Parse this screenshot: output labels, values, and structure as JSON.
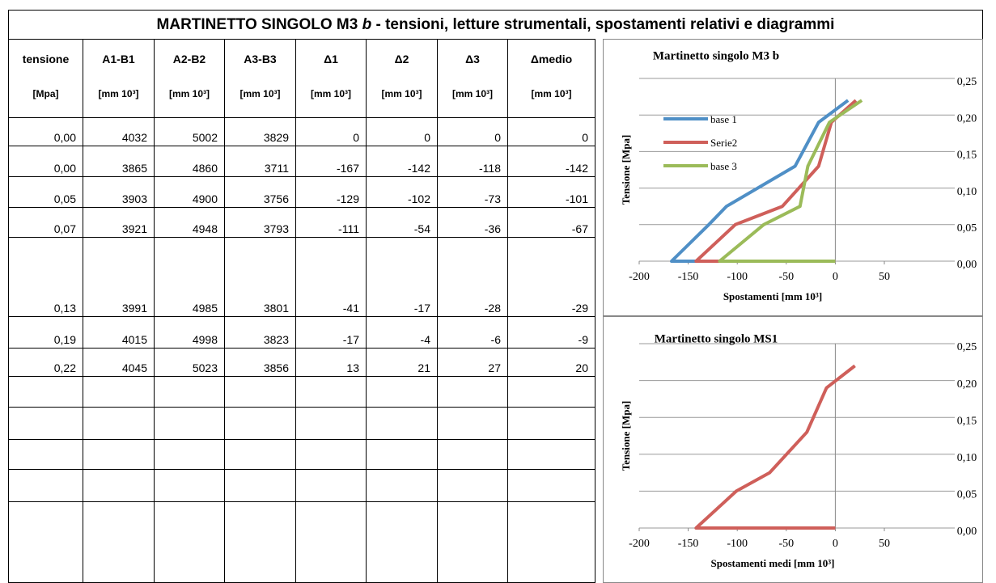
{
  "title_start": "MARTINETTO SINGOLO M3 ",
  "title_italic": "b",
  "title_end": " - tensioni, letture strumentali, spostamenti relativi e diagrammi",
  "table": {
    "headers": [
      "tensione",
      "A1-B1",
      "A2-B2",
      "A3-B3",
      "Δ1",
      "Δ2",
      "Δ3",
      "Δmedio"
    ],
    "units": [
      "[Mpa]",
      "[mm 10³]",
      "[mm 10³]",
      "[mm 10³]",
      "[mm 10³]",
      "[mm 10³]",
      "[mm 10³]",
      "[mm 10³]"
    ],
    "rows": [
      [
        "0,00",
        "4032",
        "5002",
        "3829",
        "0",
        "0",
        "0",
        "0"
      ],
      [
        "0,00",
        "3865",
        "4860",
        "3711",
        "-167",
        "-142",
        "-118",
        "-142"
      ],
      [
        "0,05",
        "3903",
        "4900",
        "3756",
        "-129",
        "-102",
        "-73",
        "-101"
      ],
      [
        "0,07",
        "3921",
        "4948",
        "3793",
        "-111",
        "-54",
        "-36",
        "-67"
      ],
      [
        "0,13",
        "3991",
        "4985",
        "3801",
        "-41",
        "-17",
        "-28",
        "-29"
      ],
      [
        "0,19",
        "4015",
        "4998",
        "3823",
        "-17",
        "-4",
        "-6",
        "-9"
      ],
      [
        "0,22",
        "4045",
        "5023",
        "3856",
        "13",
        "21",
        "27",
        "20"
      ]
    ]
  },
  "chart_data": [
    {
      "type": "line",
      "title": "Martinetto singolo M3 b",
      "xlabel": "Spostamenti [mm  10³]",
      "ylabel": "Tensione [Mpa]",
      "xlim": [
        -200,
        50
      ],
      "xticks": [
        -200,
        -150,
        -100,
        -50,
        0,
        50
      ],
      "ylim": [
        0,
        0.25
      ],
      "yticks": [
        {
          "value": 0,
          "label": "0,00"
        },
        {
          "value": 0.05,
          "label": "0,05"
        },
        {
          "value": 0.1,
          "label": "0,10"
        },
        {
          "value": 0.15,
          "label": "0,15"
        },
        {
          "value": 0.2,
          "label": "0,20"
        },
        {
          "value": 0.25,
          "label": "0,25"
        }
      ],
      "grid": true,
      "legend": "upper left",
      "series": [
        {
          "name": "base 1",
          "color": "#4f8fc6",
          "x": [
            0,
            -167,
            -129,
            -111,
            -41,
            -17,
            13
          ],
          "values": [
            0,
            0,
            0.05,
            0.075,
            0.13,
            0.19,
            0.22
          ]
        },
        {
          "name": "Serie2",
          "color": "#cf5f5a",
          "x": [
            0,
            -142,
            -102,
            -54,
            -17,
            -4,
            21
          ],
          "values": [
            0,
            0,
            0.05,
            0.075,
            0.13,
            0.19,
            0.22
          ]
        },
        {
          "name": "base 3",
          "color": "#9bbb59",
          "x": [
            0,
            -118,
            -73,
            -36,
            -28,
            -6,
            27
          ],
          "values": [
            0,
            0,
            0.05,
            0.075,
            0.13,
            0.19,
            0.22
          ]
        }
      ]
    },
    {
      "type": "line",
      "title": "Martinetto singolo MS1",
      "xlabel": "Spostamenti medi [mm  10³]",
      "ylabel": "Tensione [Mpa]",
      "xlim": [
        -200,
        50
      ],
      "xticks": [
        -200,
        -150,
        -100,
        -50,
        0,
        50
      ],
      "ylim": [
        0,
        0.25
      ],
      "yticks": [
        {
          "value": 0,
          "label": "0,00"
        },
        {
          "value": 0.05,
          "label": "0,05"
        },
        {
          "value": 0.1,
          "label": "0,10"
        },
        {
          "value": 0.15,
          "label": "0,15"
        },
        {
          "value": 0.2,
          "label": "0,20"
        },
        {
          "value": 0.25,
          "label": "0,25"
        }
      ],
      "grid": true,
      "series": [
        {
          "color": "#cf5f5a",
          "x": [
            0,
            -142,
            -101,
            -67,
            -29,
            -9,
            20
          ],
          "values": [
            0,
            0,
            0.05,
            0.075,
            0.13,
            0.19,
            0.22
          ]
        }
      ]
    }
  ]
}
